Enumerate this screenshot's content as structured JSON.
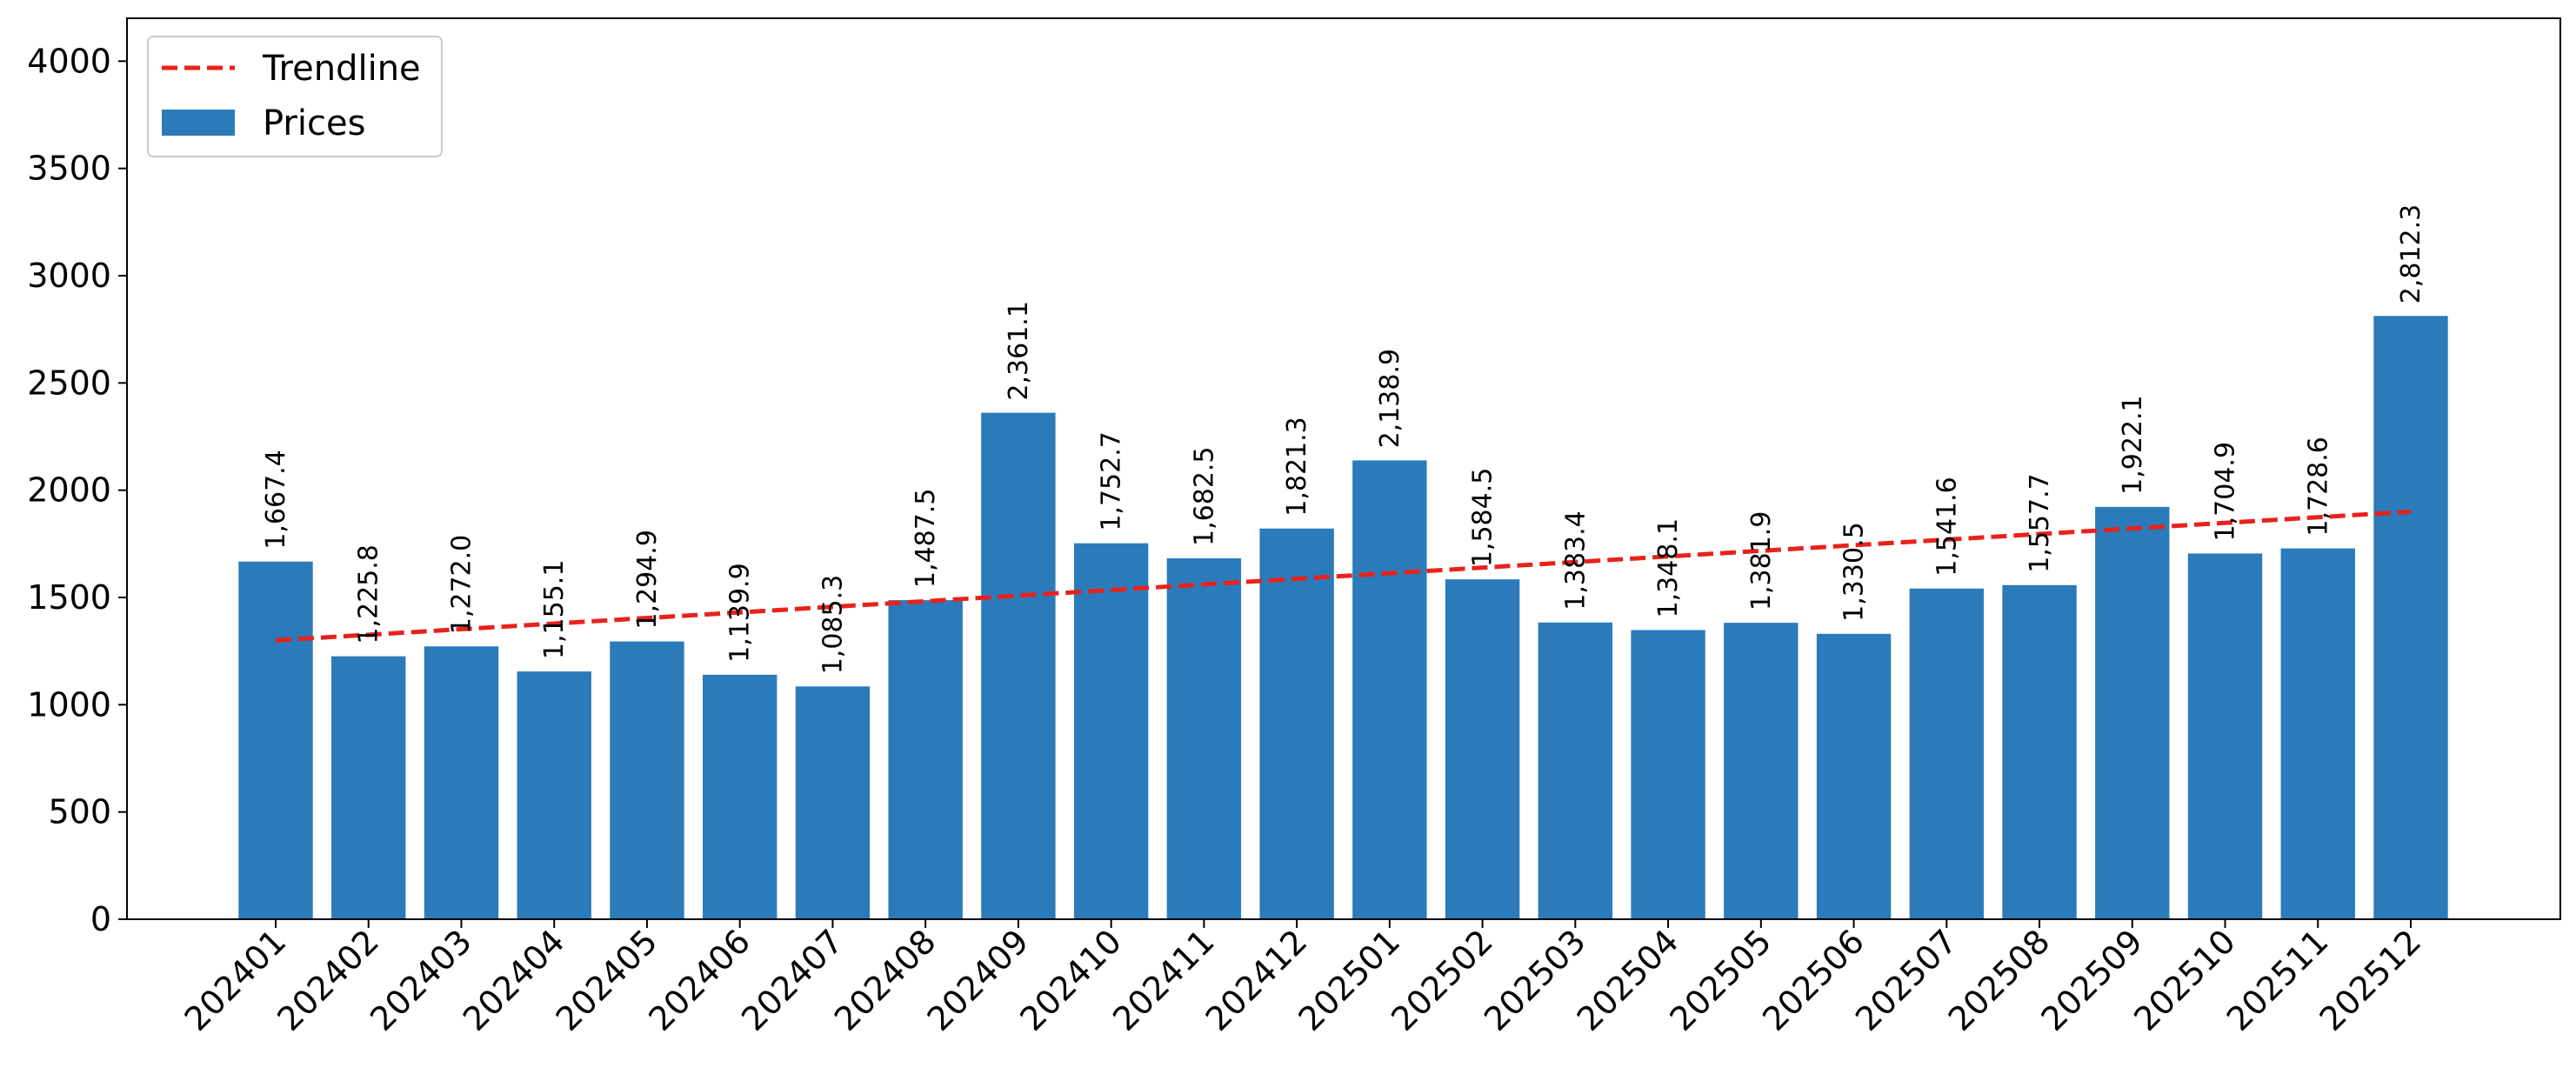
{
  "chart_data": {
    "type": "bar",
    "title": "",
    "xlabel": "",
    "ylabel": "",
    "ylim": [
      0,
      4200
    ],
    "yticks": [
      0,
      500,
      1000,
      1500,
      2000,
      2500,
      3000,
      3500,
      4000
    ],
    "grid": false,
    "legend_position": "top-left",
    "categories": [
      "202401",
      "202402",
      "202403",
      "202404",
      "202405",
      "202406",
      "202407",
      "202408",
      "202409",
      "202410",
      "202411",
      "202412",
      "202501",
      "202502",
      "202503",
      "202504",
      "202505",
      "202506",
      "202507",
      "202508",
      "202509",
      "202510",
      "202511",
      "202512"
    ],
    "series": [
      {
        "name": "Prices",
        "type": "bar",
        "color": "#2b7bba",
        "values": [
          1667.4,
          1225.8,
          1272.0,
          1155.1,
          1294.9,
          1139.9,
          1085.3,
          1487.5,
          2361.1,
          1752.7,
          1682.5,
          1821.3,
          2138.9,
          1584.5,
          1383.4,
          1348.1,
          1381.9,
          1330.5,
          1541.6,
          1557.7,
          1922.1,
          1704.9,
          1728.6,
          2812.3
        ],
        "labels": [
          "1,667.4",
          "1,225.8",
          "1,272.0",
          "1,155.1",
          "1,294.9",
          "1,139.9",
          "1,085.3",
          "1,487.5",
          "2,361.1",
          "1,752.7",
          "1,682.5",
          "1,821.3",
          "2,138.9",
          "1,584.5",
          "1,383.4",
          "1,348.1",
          "1,381.9",
          "1,330.5",
          "1,541.6",
          "1,557.7",
          "1,922.1",
          "1,704.9",
          "1,728.6",
          "2,812.3"
        ]
      },
      {
        "name": "Trendline",
        "type": "line",
        "style": "dashed",
        "color": "#e8221b",
        "start": {
          "x": "202401",
          "y": 1300
        },
        "end": {
          "x": "202512",
          "y": 1900
        }
      }
    ],
    "legend": [
      {
        "label": "Trendline",
        "kind": "dashed-line",
        "color": "#e8221b"
      },
      {
        "label": "Prices",
        "kind": "patch",
        "color": "#2b7bba"
      }
    ]
  }
}
